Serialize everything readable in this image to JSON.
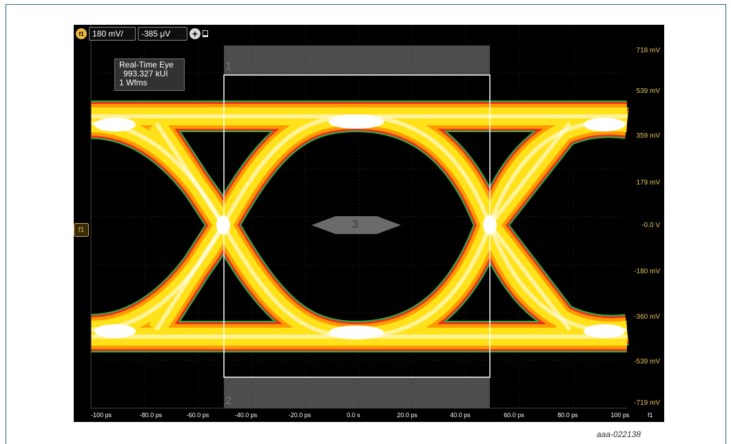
{
  "toolbar": {
    "channel_badge": "f1",
    "scale": "180 mV/",
    "offset": "-385 μV",
    "add_icon": "plus-circle-icon",
    "lock_icon": "lock-icon"
  },
  "ref_marker": {
    "label": "f1",
    "icon": "reference-level-icon"
  },
  "info_box": {
    "title": "Real-Time Eye",
    "ui_count": "993.327 kUI",
    "waveforms": "1 Wfms"
  },
  "box_labels": {
    "top": "1",
    "bottom": "2",
    "mask": "3"
  },
  "y_axis_labels": [
    "718 mV",
    "539 mV",
    "359 mV",
    "179 mV",
    "-0.0 V",
    "-180 mV",
    "-360 mV",
    "-539 mV",
    "-719 mV"
  ],
  "x_axis_labels": [
    "-100 ps",
    "-80.0 ps",
    "-60.0 ps",
    "-40.0 ps",
    "-20.0 ps",
    "0.0 s",
    "20.0 ps",
    "40.0 ps",
    "60.0 ps",
    "80.0 ps",
    "100 ps"
  ],
  "x_unit": "f1",
  "caption": "aaa-022138",
  "colors": {
    "trace_core": "#ffffff",
    "trace_yellow": "#ffe21a",
    "trace_orange": "#ff9a00",
    "trace_red": "#e8341f",
    "trace_green": "#23b04a",
    "axis_labels": "#e5c35a",
    "frame": "#1f6e7a"
  }
}
